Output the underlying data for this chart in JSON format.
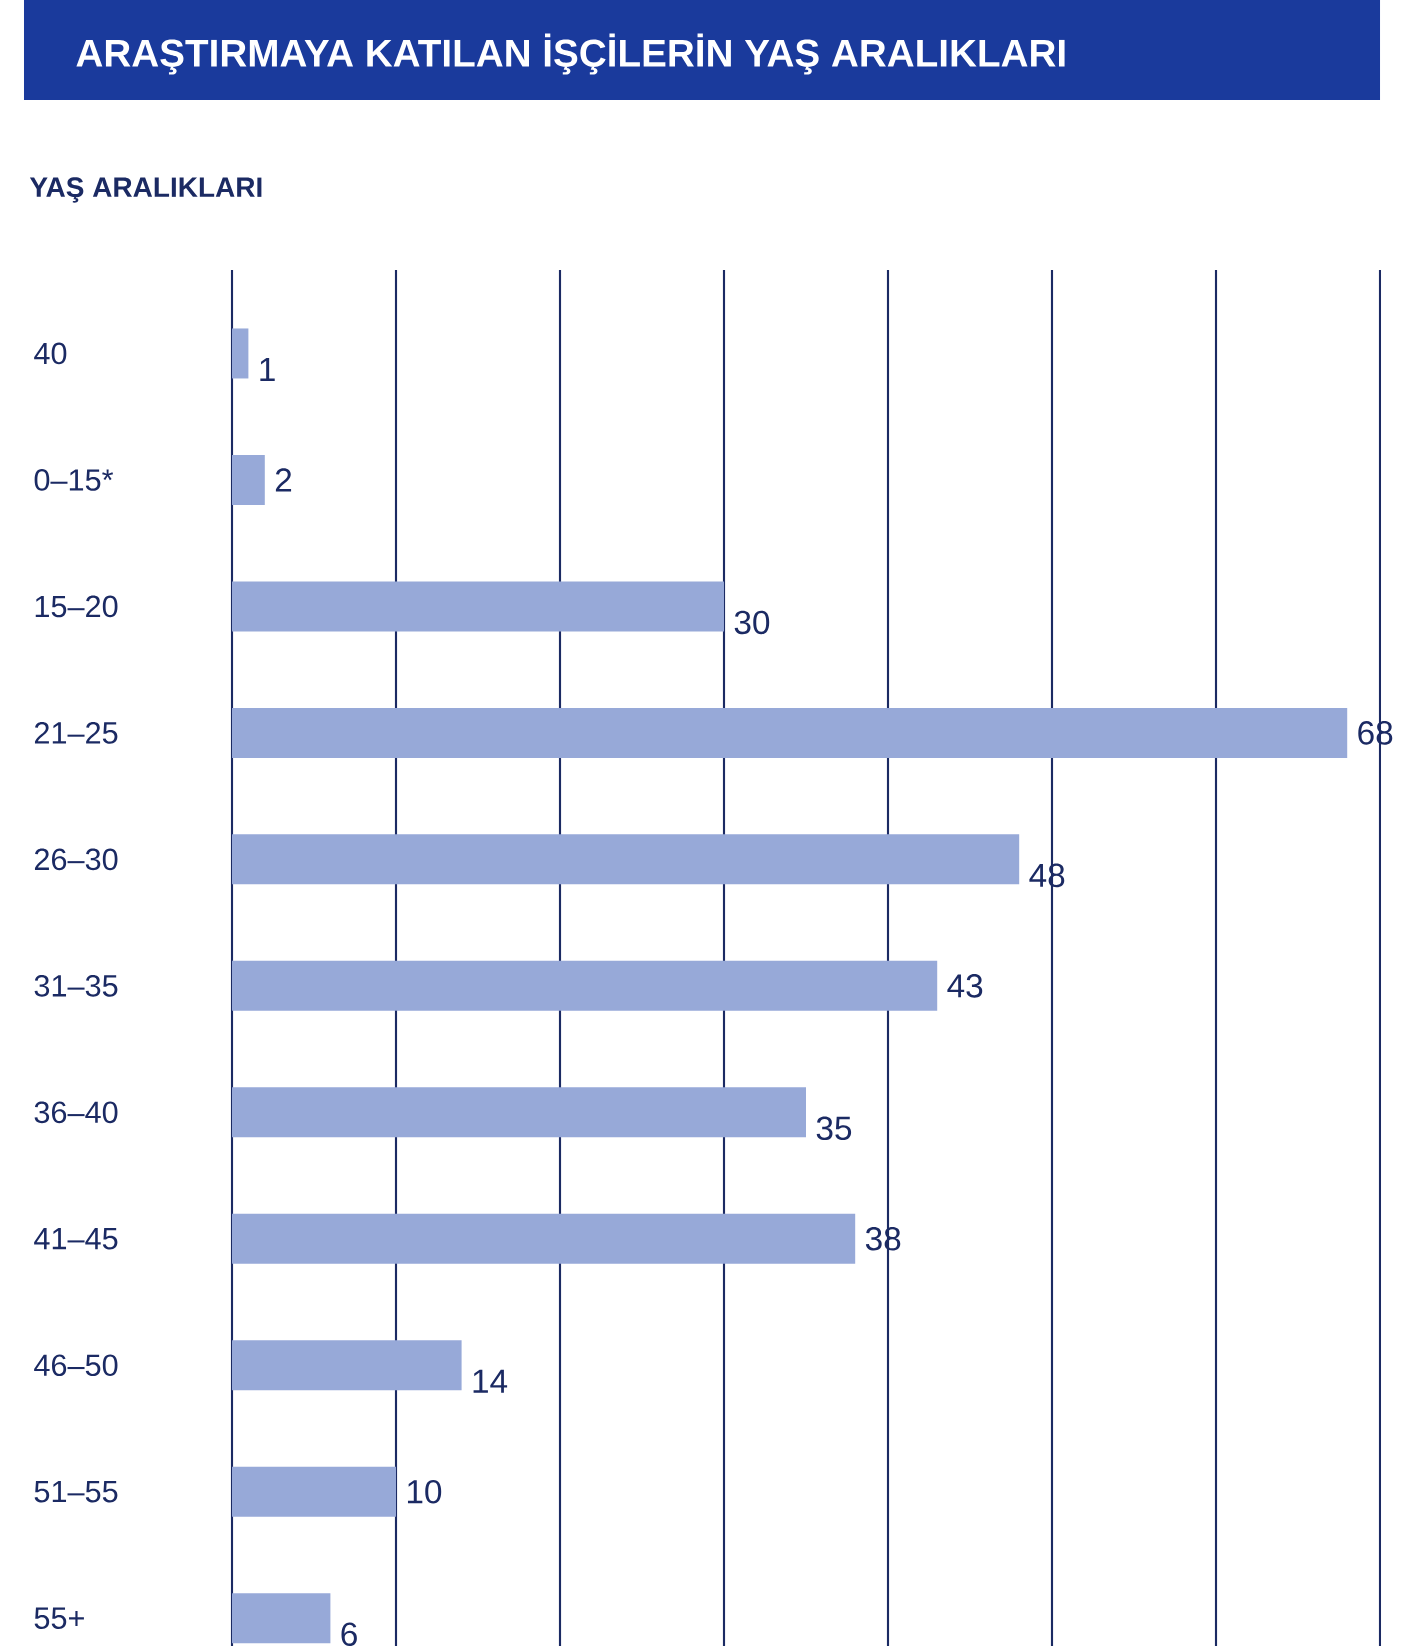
{
  "chart_data": {
    "type": "bar",
    "orientation": "horizontal",
    "title": "ARAŞTIRMAYA KATILAN İŞÇİLERİN YAŞ ARALIKLARI",
    "ylabel": "YAŞ ARALIKLARI",
    "categories": [
      "40",
      "0–15*",
      "15–20",
      "21–25",
      "26–30",
      "31–35",
      "36–40",
      "41–45",
      "46–50",
      "51–55",
      "55+"
    ],
    "values": [
      1,
      2,
      30,
      68,
      48,
      43,
      35,
      38,
      14,
      10,
      6
    ],
    "color": "#97a9d8",
    "data_labels": true,
    "grid": "x",
    "tick_labels": "y",
    "xlim": [
      0,
      70
    ],
    "xticks": [
      {
        "value": 0,
        "label": null
      },
      {
        "value": 10,
        "label": null
      },
      {
        "value": 20,
        "label": null
      },
      {
        "value": 30,
        "label": null
      },
      {
        "value": 40,
        "label": null
      },
      {
        "value": 50,
        "label": null
      },
      {
        "value": 60,
        "label": null
      },
      {
        "value": 70,
        "label": null
      }
    ]
  }
}
